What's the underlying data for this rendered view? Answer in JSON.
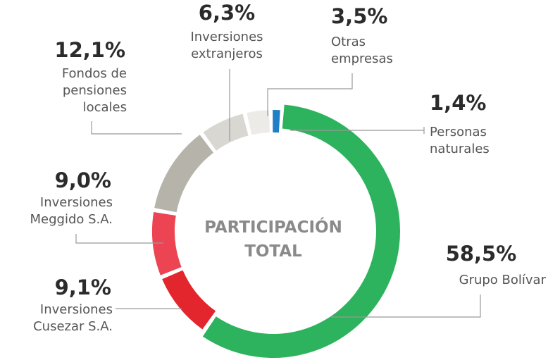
{
  "chart_data": {
    "type": "donut",
    "center_label": "PARTICIPACIÓN\nTOTAL",
    "categories": [
      "Grupo Bolívar",
      "Inversiones\nCusezar S.A.",
      "Inversiones\nMeggido S.A.",
      "Fondos de\npensiones\nlocales",
      "Inversiones\nextranjeros",
      "Otras\nempresas",
      "Personas\nnaturales"
    ],
    "values": [
      58.5,
      9.1,
      9.0,
      12.1,
      6.3,
      3.5,
      1.4
    ],
    "value_labels": [
      "58,5%",
      "9,1%",
      "9,0%",
      "12,1%",
      "6,3%",
      "3,5%",
      "1,4%"
    ],
    "colors": [
      "#2db35d",
      "#e3262e",
      "#ec4452",
      "#b5b3aa",
      "#d9d7d1",
      "#ecebe8",
      "#1f7fc6"
    ]
  }
}
